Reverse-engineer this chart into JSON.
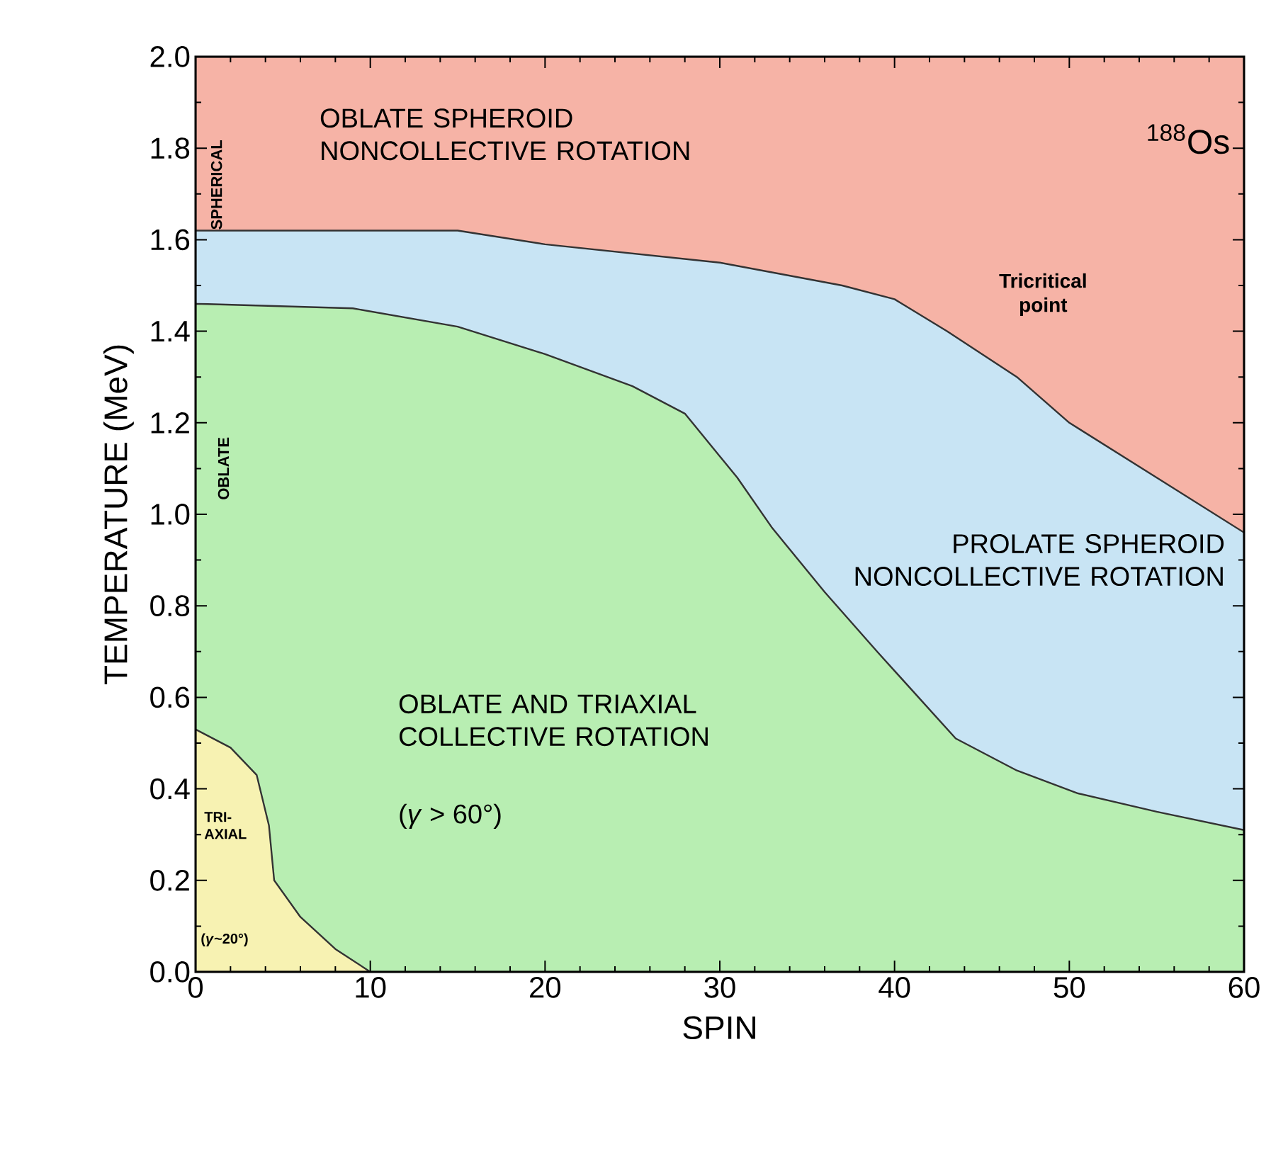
{
  "chart_data": {
    "type": "area",
    "xlabel": "SPIN",
    "ylabel": "TEMPERATURE (MeV)",
    "xlim": [
      0,
      60
    ],
    "ylim": [
      0,
      2
    ],
    "xticks": [
      0,
      10,
      20,
      30,
      40,
      50,
      60
    ],
    "yticks": [
      {
        "value": 0,
        "label": "0.0"
      },
      0.2,
      0.4,
      0.6,
      0.8,
      {
        "value": 1,
        "label": "1.0"
      },
      1.2,
      1.4,
      1.6,
      1.8,
      {
        "value": 2,
        "label": "2.0"
      }
    ],
    "series": [
      {
        "color": "#f6b3a6",
        "x": [
          0,
          60
        ],
        "values": [
          2,
          2
        ]
      },
      {
        "color": "#c8e4f4",
        "x": [
          0,
          15,
          20,
          30,
          37,
          40,
          43,
          47,
          50,
          55,
          60
        ],
        "values": [
          1.62,
          1.62,
          1.59,
          1.55,
          1.5,
          1.47,
          1.4,
          1.3,
          1.2,
          1.08,
          0.96
        ]
      },
      {
        "color": "#b8eeb2",
        "x": [
          0,
          9,
          15,
          20,
          25,
          28,
          31,
          33,
          36,
          39,
          43.5,
          47,
          50.5,
          55,
          60
        ],
        "values": [
          1.46,
          1.45,
          1.41,
          1.35,
          1.28,
          1.22,
          1.08,
          0.97,
          0.83,
          0.7,
          0.51,
          0.44,
          0.39,
          0.35,
          0.31
        ]
      },
      {
        "color": "#f7f2b2",
        "x": [
          0,
          2,
          3.5,
          4.2,
          4.5,
          6,
          8,
          10
        ],
        "values": [
          0.53,
          0.49,
          0.43,
          0.32,
          0.2,
          0.12,
          0.05,
          0
        ]
      }
    ],
    "annotations": [
      "OBLATE SPHEROID NONCOLLECTIVE ROTATION",
      "$^{188}$Os",
      "Tricritical point",
      "PROLATE SPHEROID NONCOLLECTIVE ROTATION",
      "OBLATE AND TRIAXIAL COLLECTIVE ROTATION",
      "(*γ* > 60°)",
      "SPHERICAL",
      "OBLATE",
      "TRI-AXIAL",
      "(*γ*~20°)"
    ]
  }
}
